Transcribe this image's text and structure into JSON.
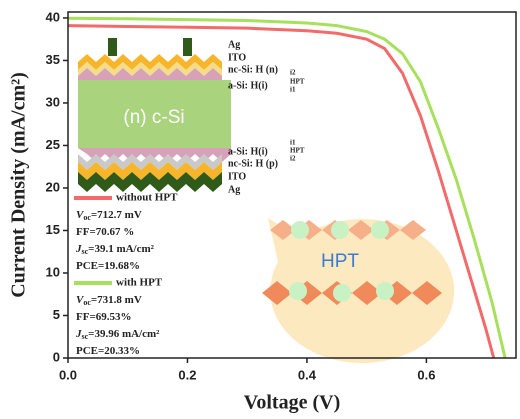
{
  "chart_data": {
    "type": "line",
    "xlabel": "Voltage (V)",
    "ylabel": "Current Density (mA/cm²)",
    "xlim": [
      0,
      0.75
    ],
    "ylim": [
      0,
      40.7
    ],
    "xticks": [
      {
        "value": 0,
        "label": "0.0"
      },
      0.2,
      0.4,
      0.6
    ],
    "yticks": [
      0,
      5,
      10,
      15,
      20,
      25,
      30,
      35,
      40
    ],
    "series": [
      {
        "name": "without HPT",
        "color": "#f26a6a",
        "x": [
          0,
          0.1,
          0.2,
          0.3,
          0.4,
          0.45,
          0.5,
          0.53,
          0.56,
          0.59,
          0.62,
          0.65,
          0.68,
          0.7,
          0.7127
        ],
        "values": [
          39.1,
          39.0,
          38.9,
          38.8,
          38.5,
          38.2,
          37.5,
          36.4,
          33.5,
          28.5,
          22.0,
          15.0,
          8.0,
          3.3,
          0
        ],
        "stats": [
          [
            {
              "text": "V",
              "italic": true
            },
            {
              "text": "oc",
              "sub": true
            },
            {
              "text": "=712.7 mV"
            }
          ],
          [
            {
              "text": "FF=70.67 %"
            }
          ],
          [
            {
              "text": "J",
              "italic": true
            },
            {
              "text": "sc",
              "sub": true
            },
            {
              "text": "=39.1 mA/cm²"
            }
          ],
          [
            {
              "text": "PCE=19.68%"
            }
          ]
        ]
      },
      {
        "name": "with HPT",
        "color": "#a6e05c",
        "x": [
          0,
          0.1,
          0.2,
          0.3,
          0.4,
          0.45,
          0.5,
          0.53,
          0.56,
          0.59,
          0.62,
          0.65,
          0.68,
          0.71,
          0.7318
        ],
        "values": [
          39.96,
          39.9,
          39.8,
          39.7,
          39.4,
          39.1,
          38.4,
          37.5,
          35.8,
          32.5,
          27.0,
          21.0,
          14.0,
          6.5,
          0
        ],
        "stats": [
          [
            {
              "text": "V",
              "italic": true
            },
            {
              "text": "oc",
              "sub": true
            },
            {
              "text": "=731.8 mV"
            }
          ],
          [
            {
              "text": "FF=69.53%"
            }
          ],
          [
            {
              "text": "J",
              "italic": true
            },
            {
              "text": "sc",
              "sub": true
            },
            {
              "text": "=39.96 mA/cm²"
            }
          ],
          [
            {
              "text": "PCE=20.33%"
            }
          ]
        ]
      }
    ]
  },
  "inset": {
    "substrate": "(n) c-Si",
    "bubble": "HPT",
    "top_labels": [
      "Ag",
      "ITO",
      "nc-Si: H (n)",
      "a-Si: H(i)"
    ],
    "top_sub": [
      "i2",
      "HPT",
      "i1"
    ],
    "bottom_labels": [
      "a-Si: H(i)",
      "nc-Si: H (p)",
      "ITO",
      "Ag"
    ],
    "bottom_sub": [
      "i1",
      "HPT",
      "i2"
    ]
  }
}
